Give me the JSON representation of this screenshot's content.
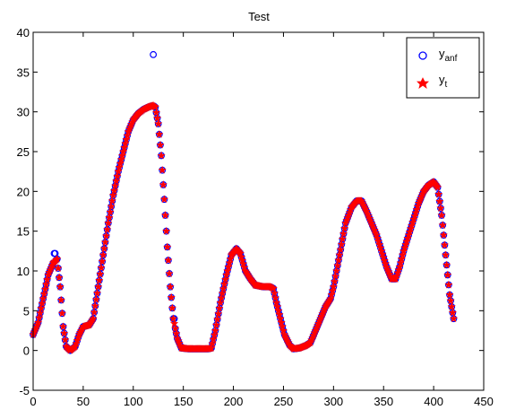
{
  "chart_data": {
    "type": "scatter",
    "title": "Test",
    "xlabel": "",
    "ylabel": "",
    "xlim": [
      0,
      450
    ],
    "ylim": [
      -5,
      40
    ],
    "xticks": [
      0,
      50,
      100,
      150,
      200,
      250,
      300,
      350,
      400,
      450
    ],
    "yticks": [
      -5,
      0,
      5,
      10,
      15,
      20,
      25,
      30,
      35,
      40
    ],
    "grid": false,
    "legend_position": "top-right",
    "legend": [
      {
        "base": "y",
        "sub": "anf",
        "marker": "circle",
        "color": "#0000ff"
      },
      {
        "base": "y",
        "sub": "t",
        "marker": "filled-star",
        "color": "#ff0000"
      }
    ],
    "curve_knots": [
      [
        0,
        2.0
      ],
      [
        5,
        3.5
      ],
      [
        10,
        6.5
      ],
      [
        15,
        9.5
      ],
      [
        20,
        11.0
      ],
      [
        24,
        11.5
      ],
      [
        27,
        8.0
      ],
      [
        30,
        3.0
      ],
      [
        33,
        0.5
      ],
      [
        37,
        0.0
      ],
      [
        42,
        0.5
      ],
      [
        46,
        2.0
      ],
      [
        50,
        3.0
      ],
      [
        56,
        3.2
      ],
      [
        60,
        4.0
      ],
      [
        65,
        8.0
      ],
      [
        70,
        12.0
      ],
      [
        75,
        16.0
      ],
      [
        80,
        19.5
      ],
      [
        85,
        22.5
      ],
      [
        90,
        25.0
      ],
      [
        95,
        27.5
      ],
      [
        100,
        29.0
      ],
      [
        105,
        29.8
      ],
      [
        110,
        30.3
      ],
      [
        115,
        30.6
      ],
      [
        120,
        30.8
      ],
      [
        122,
        30.6
      ],
      [
        125,
        28.5
      ],
      [
        128,
        24.5
      ],
      [
        131,
        19.0
      ],
      [
        134,
        13.0
      ],
      [
        137,
        8.0
      ],
      [
        140,
        4.0
      ],
      [
        144,
        1.5
      ],
      [
        148,
        0.3
      ],
      [
        155,
        0.2
      ],
      [
        165,
        0.2
      ],
      [
        175,
        0.2
      ],
      [
        178,
        0.3
      ],
      [
        182,
        2.5
      ],
      [
        187,
        6.0
      ],
      [
        193,
        9.5
      ],
      [
        198,
        12.0
      ],
      [
        203,
        12.8
      ],
      [
        207,
        12.2
      ],
      [
        212,
        10.0
      ],
      [
        217,
        9.0
      ],
      [
        222,
        8.2
      ],
      [
        230,
        8.0
      ],
      [
        237,
        8.0
      ],
      [
        240,
        7.8
      ],
      [
        243,
        6.0
      ],
      [
        247,
        4.0
      ],
      [
        251,
        2.0
      ],
      [
        256,
        0.7
      ],
      [
        260,
        0.2
      ],
      [
        266,
        0.3
      ],
      [
        272,
        0.6
      ],
      [
        277,
        1.0
      ],
      [
        282,
        2.5
      ],
      [
        287,
        4.0
      ],
      [
        292,
        5.5
      ],
      [
        297,
        6.5
      ],
      [
        300,
        8.0
      ],
      [
        306,
        12.0
      ],
      [
        312,
        16.0
      ],
      [
        318,
        18.0
      ],
      [
        323,
        18.8
      ],
      [
        328,
        18.8
      ],
      [
        333,
        17.5
      ],
      [
        338,
        16.0
      ],
      [
        343,
        14.5
      ],
      [
        348,
        12.5
      ],
      [
        353,
        10.5
      ],
      [
        358,
        9.0
      ],
      [
        362,
        9.0
      ],
      [
        366,
        10.5
      ],
      [
        370,
        12.5
      ],
      [
        375,
        14.5
      ],
      [
        380,
        16.5
      ],
      [
        385,
        18.5
      ],
      [
        390,
        20.0
      ],
      [
        395,
        20.8
      ],
      [
        400,
        21.2
      ],
      [
        404,
        20.5
      ],
      [
        408,
        17.0
      ],
      [
        412,
        12.0
      ],
      [
        416,
        7.0
      ],
      [
        420,
        4.0
      ]
    ],
    "series": [
      {
        "name": "y_anf",
        "marker": "circle",
        "color": "#0000ff",
        "x_start": 0,
        "x_end": 420,
        "x_step": 1,
        "overrides": [
          [
            21,
            12.2
          ],
          [
            22,
            12.2
          ],
          [
            120,
            37.2
          ],
          [
            141,
            4.0
          ]
        ]
      },
      {
        "name": "y_t",
        "marker": "filled-star",
        "color": "#ff0000",
        "x_start": 0,
        "x_end": 420,
        "x_step": 1,
        "overrides": []
      }
    ]
  }
}
